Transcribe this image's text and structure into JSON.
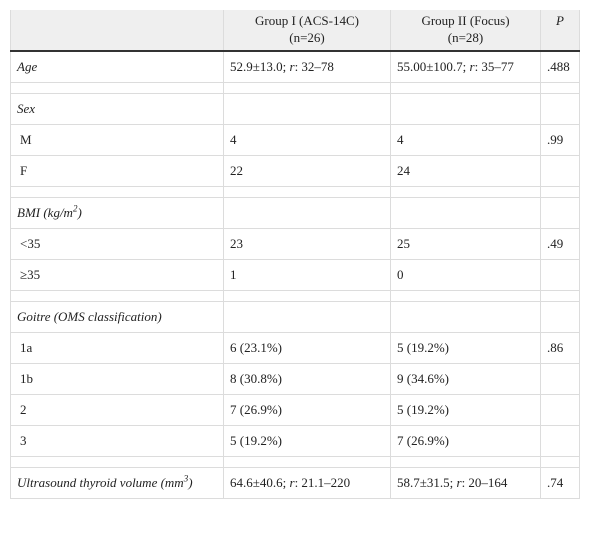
{
  "table": {
    "header": [
      [
        "Group I (ACS-14C)",
        "(n=26)"
      ],
      [
        "Group II (Focus)",
        "(n=28)"
      ],
      "P"
    ],
    "rows": [
      {
        "label": "Age",
        "g1": [
          "52.9±13.0; ",
          "r",
          ": 32–78"
        ],
        "g2": [
          "55.00±100.7; ",
          "r",
          ": 35–77"
        ],
        "p": ".488"
      },
      {
        "label": "Sex"
      },
      {
        "label": "M",
        "g1": "4",
        "g2": "4",
        "p": ".99"
      },
      {
        "label": "F",
        "g1": "22",
        "g2": "24"
      },
      {
        "label": [
          "BMI (kg/m",
          "2",
          ")"
        ]
      },
      {
        "label": "<35",
        "g1": "23",
        "g2": "25",
        "p": ".49"
      },
      {
        "label": "≥35",
        "g1": "1",
        "g2": "0"
      },
      {
        "label": "Goitre (OMS classification)"
      },
      {
        "label": "1a",
        "g1": "6 (23.1%)",
        "g2": "5 (19.2%)",
        "p": ".86"
      },
      {
        "label": "1b",
        "g1": "8 (30.8%)",
        "g2": "9 (34.6%)"
      },
      {
        "label": "2",
        "g1": "7 (26.9%)",
        "g2": "5 (19.2%)"
      },
      {
        "label": "3",
        "g1": "5 (19.2%)",
        "g2": "7 (26.9%)"
      },
      {
        "label": [
          "Ultrasound thyroid volume (mm",
          "3",
          ")"
        ],
        "g1": [
          "64.6±40.6; ",
          "r",
          ": 21.1–220"
        ],
        "g2": [
          "58.7±31.5; ",
          "r",
          ": 20–164"
        ],
        "p": ".74"
      }
    ]
  }
}
